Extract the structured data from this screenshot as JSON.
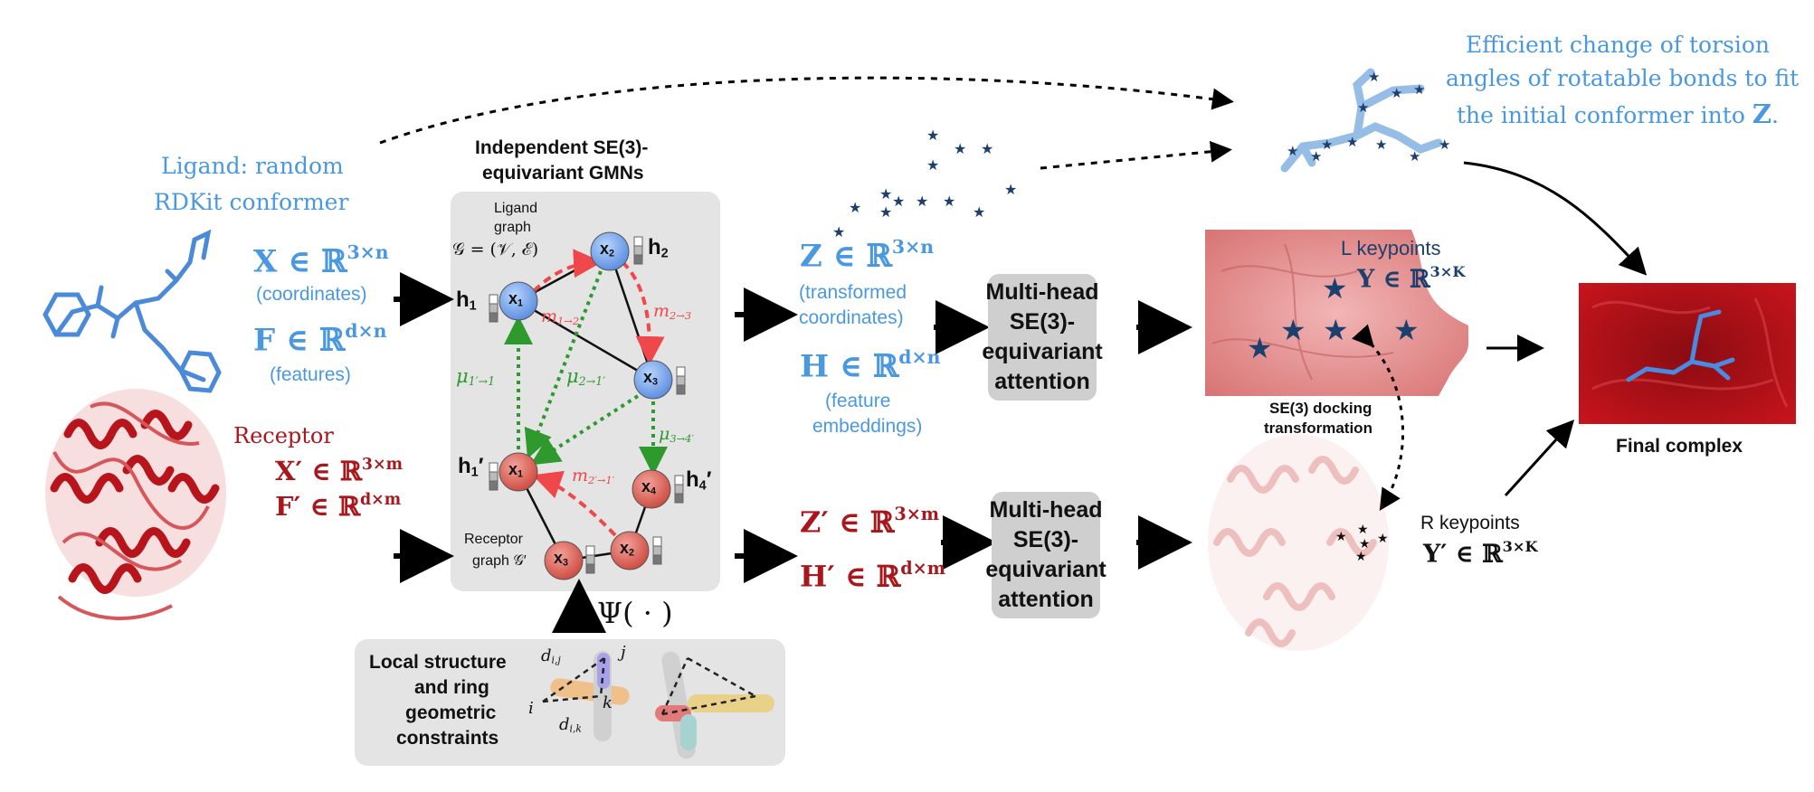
{
  "ligand": {
    "title_line1": "Ligand: random",
    "title_line2": "RDKit conformer",
    "X_label": "X ∈ ℝ",
    "X_sup": "3×n",
    "X_caption": "(coordinates)",
    "F_label": "F ∈ ℝ",
    "F_sup": "d×n",
    "F_caption": "(features)"
  },
  "receptor": {
    "title": "Receptor",
    "X_label": "X′ ∈ ℝ",
    "X_sup": "3×m",
    "F_label": "F′ ∈ ℝ",
    "F_sup": "d×m"
  },
  "gmn": {
    "title_line1": "Independent SE(3)-",
    "title_line2": "equivariant GMNs",
    "ligand_graph_line1": "Ligand",
    "ligand_graph_line2": "graph",
    "ligand_graph_formula": "𝒢 = (𝒱, ℰ)",
    "receptor_graph_line1": "Receptor",
    "receptor_graph_line2": "graph 𝒢′",
    "psi": "Ψ( · )",
    "nodes": {
      "x1": "x",
      "x1_sub": "1",
      "x2": "x",
      "x2_sub": "2",
      "x3": "x",
      "x3_sub": "3",
      "rx1": "x",
      "rx1_sub": "1",
      "rx2": "x",
      "rx2_sub": "2",
      "rx3": "x",
      "rx3_sub": "3",
      "rx4": "x",
      "rx4_sub": "4"
    },
    "h": {
      "h1": "h",
      "h1_sub": "1",
      "h2": "h",
      "h2_sub": "2",
      "rh1": "h",
      "rh1_sub": "1",
      "rh1_prime": "′",
      "rh4": "h",
      "rh4_sub": "4",
      "rh4_prime": "′"
    },
    "messages": {
      "m12": "m",
      "m12_sub": "1→2",
      "m23": "m",
      "m23_sub": "2→3",
      "m21p": "m",
      "m21p_sub": "2′→1′",
      "mu11": "μ",
      "mu11_sub": "1′→1",
      "mu21": "μ",
      "mu21_sub": "2→1′",
      "mu34": "μ",
      "mu34_sub": "3→4′"
    }
  },
  "constraints": {
    "line1": "Local structure",
    "line2": "and ring",
    "line3": "geometric",
    "line4": "constraints",
    "dij": "d",
    "dij_sub": "i,j",
    "dik": "d",
    "dik_sub": "i,k",
    "i": "i",
    "j": "j",
    "k": "k"
  },
  "ligand_out": {
    "Z_label": "Z ∈ ℝ",
    "Z_sup": "3×n",
    "Z_caption1": "(transformed",
    "Z_caption2": "coordinates)",
    "H_label": "H ∈ ℝ",
    "H_sup": "d×n",
    "H_caption1": "(feature",
    "H_caption2": "embeddings)"
  },
  "receptor_out": {
    "Z_label": "Z′ ∈ ℝ",
    "Z_sup": "3×m",
    "H_label": "H′ ∈ ℝ",
    "H_sup": "d×m"
  },
  "attention": {
    "top_line1": "Multi-head",
    "top_line2": "SE(3)-",
    "top_line3": "equivariant",
    "top_line4": "attention",
    "bot_line1": "Multi-head",
    "bot_line2": "SE(3)-",
    "bot_line3": "equivariant",
    "bot_line4": "attention"
  },
  "keypoints": {
    "L_title": "L keypoints",
    "L_formula": "Y ∈ ℝ",
    "L_sup": "3×K",
    "R_title": "R keypoints",
    "R_formula": "Y′ ∈ ℝ",
    "R_sup": "3×K",
    "docking_line1": "SE(3) docking",
    "docking_line2": "transformation"
  },
  "torsion": {
    "line1": "Efficient change of torsion",
    "line2": "angles of rotatable bonds to fit",
    "line3": "the initial conformer into ",
    "line3_bold": "Z",
    "line3_end": "."
  },
  "final": {
    "label": "Final complex"
  },
  "colors": {
    "ligand_blue": "#4a98e0",
    "receptor_red": "#a8171c",
    "keypoint_navy": "#1d3f6e",
    "message_red": "#f0474a",
    "message_green": "#2e9a2e",
    "panel_gray": "#e4e4e4",
    "attention_gray": "#cfcfcf"
  }
}
